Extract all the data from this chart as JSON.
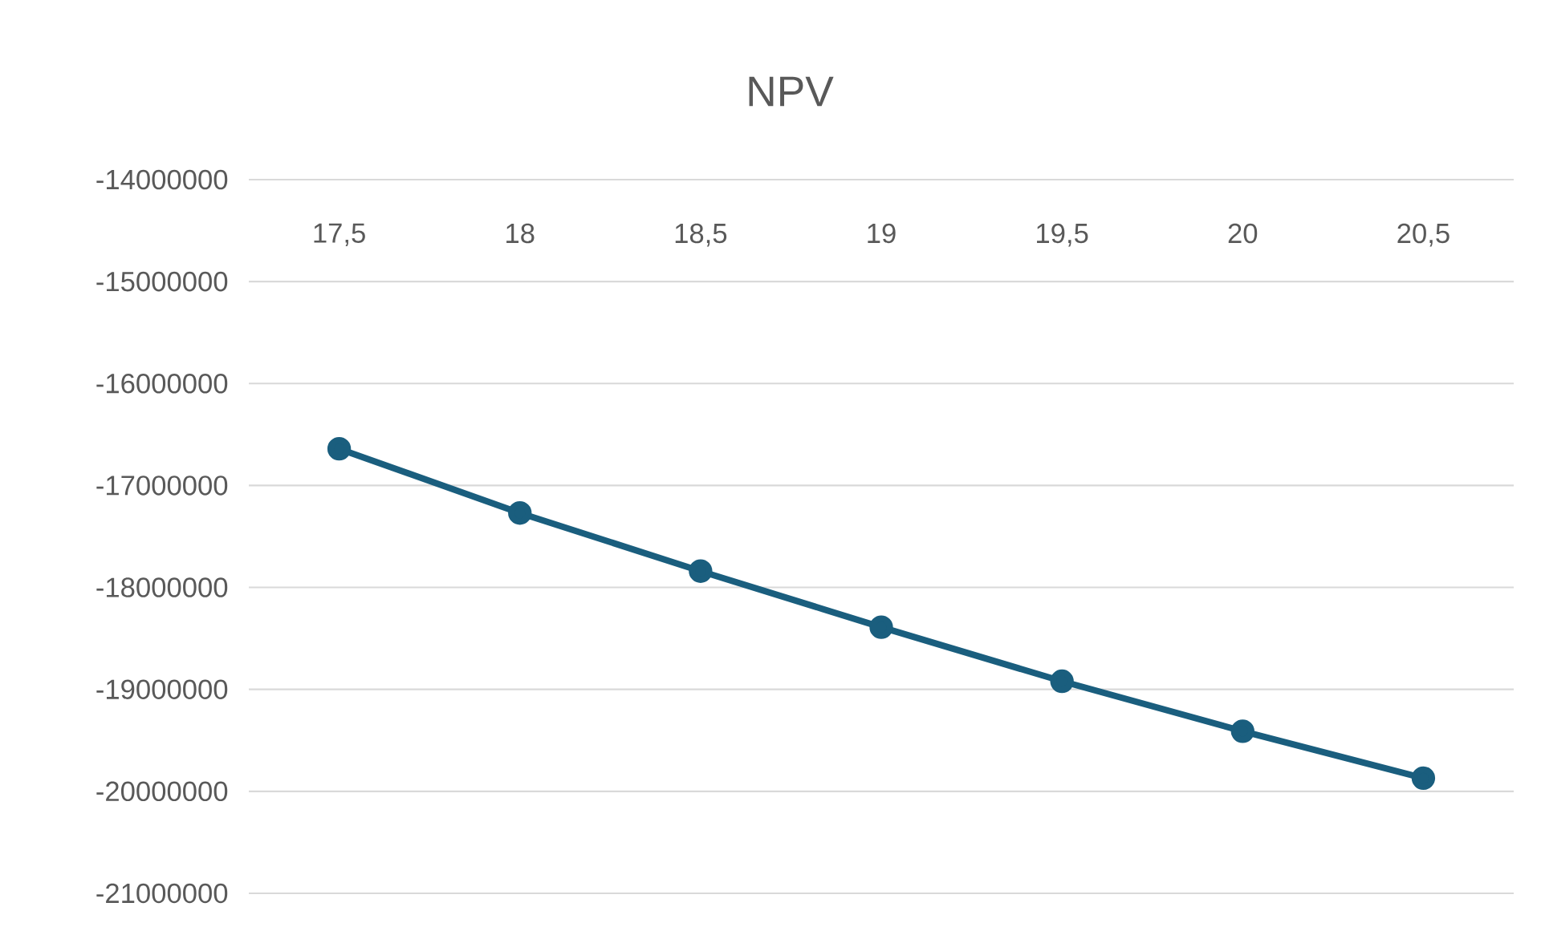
{
  "chart_data": {
    "type": "line",
    "title": "NPV",
    "categories": [
      "17,5",
      "18",
      "18,5",
      "19",
      "19,5",
      "20",
      "20,5"
    ],
    "values": [
      -16640000,
      -17270000,
      -17840000,
      -18390000,
      -18920000,
      -19410000,
      -19870000
    ],
    "color": "#1a5e7e",
    "marker": "circle",
    "line_style": "solid",
    "ylim": [
      -21000000,
      -14000000
    ],
    "yticks": [
      -21000000,
      -20000000,
      -19000000,
      -18000000,
      -17000000,
      -16000000,
      -15000000,
      -14000000
    ],
    "grid": "y"
  }
}
